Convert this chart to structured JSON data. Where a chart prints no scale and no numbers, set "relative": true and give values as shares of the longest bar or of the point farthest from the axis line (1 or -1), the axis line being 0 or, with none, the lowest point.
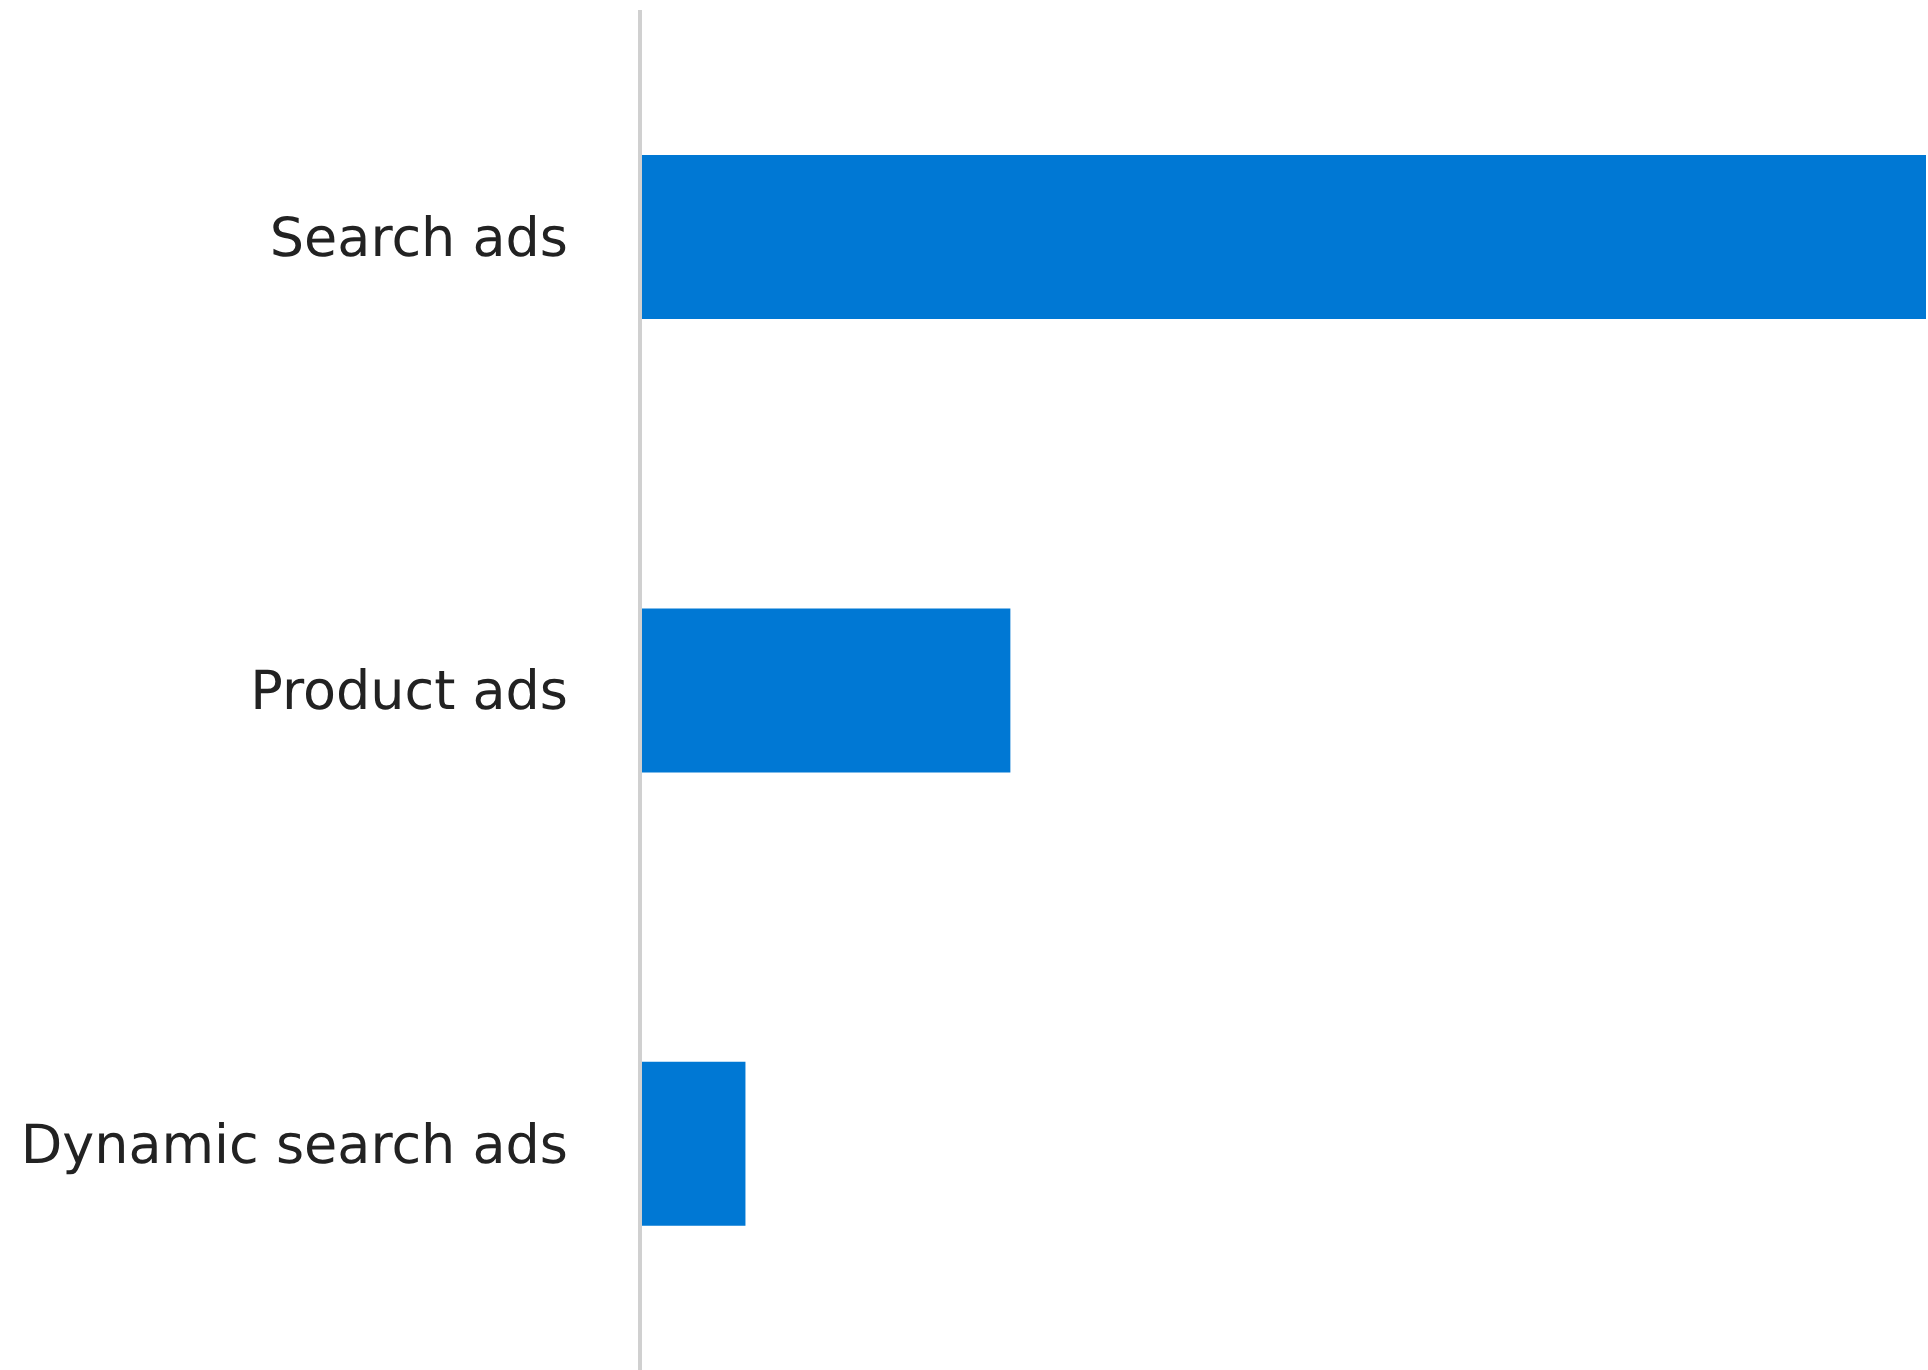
{
  "chart_data": {
    "type": "bar",
    "orientation": "horizontal",
    "relative": true,
    "categories": [
      "Search ads",
      "Product ads",
      "Dynamic search ads"
    ],
    "values": [
      1,
      0.288,
      0.082
    ],
    "color": "#0078d4"
  }
}
